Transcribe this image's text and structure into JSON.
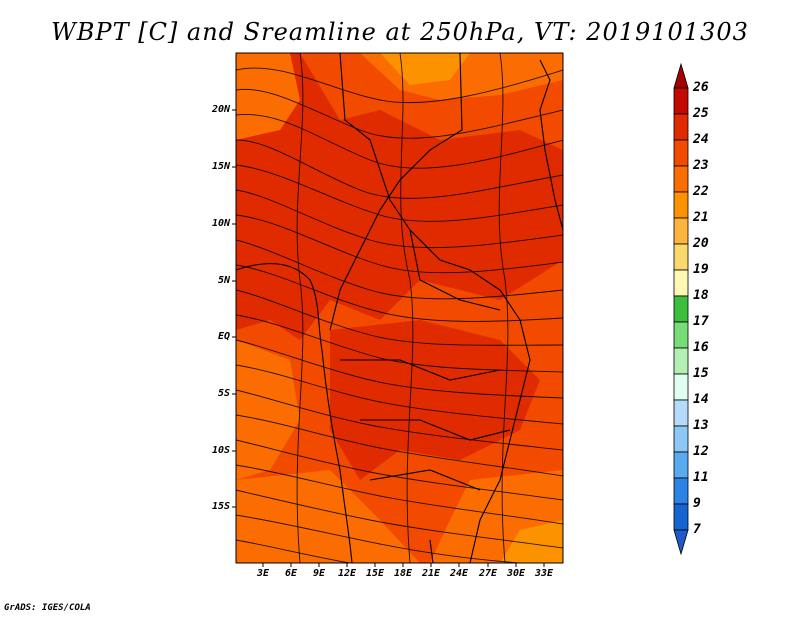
{
  "title": "WBPT [C] and Sreamline at 250hPa, VT: 2019101303",
  "credit": "GrADS: IGES/COLA",
  "lat_labels": [
    "20N",
    "15N",
    "10N",
    "5N",
    "EQ",
    "5S",
    "10S",
    "15S"
  ],
  "lon_labels": [
    "3E",
    "6E",
    "9E",
    "12E",
    "15E",
    "18E",
    "21E",
    "24E",
    "27E",
    "30E",
    "33E"
  ],
  "colorbar": {
    "labels": [
      "26",
      "25",
      "24",
      "23",
      "22",
      "21",
      "20",
      "19",
      "18",
      "17",
      "16",
      "15",
      "14",
      "13",
      "12",
      "11",
      "9",
      "7"
    ],
    "colors": [
      "#a50000",
      "#c40a00",
      "#e02b00",
      "#f24b00",
      "#fb6d00",
      "#fd9200",
      "#fcb43c",
      "#fbd86e",
      "#fff7b4",
      "#3cbf3c",
      "#78dc78",
      "#b4f0b4",
      "#e1fff0",
      "#b4dcfa",
      "#8cc8f5",
      "#5aaaf0",
      "#2d82e6",
      "#1464d2",
      "#1e5ac8"
    ]
  },
  "map": {
    "region": "Central and Southern Africa",
    "field": "WBPT",
    "level": "250hPa"
  }
}
